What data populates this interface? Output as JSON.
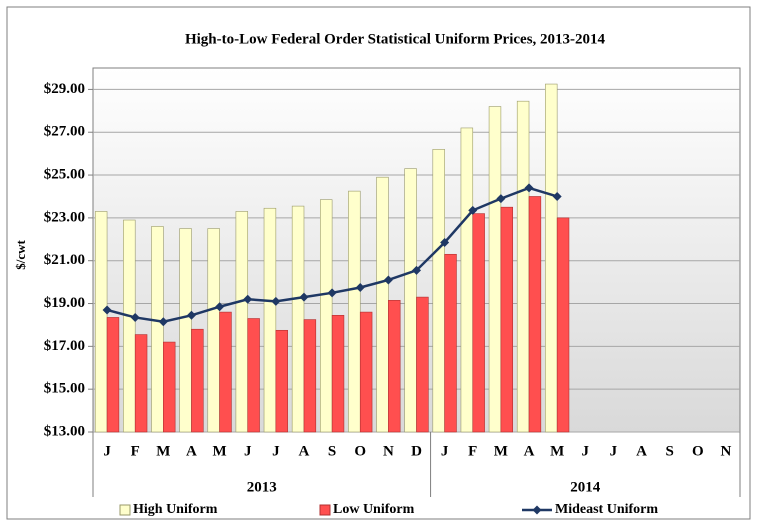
{
  "chart_data": {
    "type": "bar-line",
    "title": "High-to-Low Federal Order Statistical Uniform Prices, 2013-2014",
    "y_label": "$/cwt",
    "groups": [
      {
        "name": "2013",
        "categories": [
          "J",
          "F",
          "M",
          "A",
          "M",
          "J",
          "J",
          "A",
          "S",
          "O",
          "N",
          "D"
        ]
      },
      {
        "name": "2014",
        "categories": [
          "J",
          "F",
          "M",
          "A",
          "M",
          "J",
          "J",
          "A",
          "S",
          "O",
          "N"
        ]
      }
    ],
    "ylim": [
      13,
      30
    ],
    "yticks": [
      {
        "value": 13,
        "label": "$13.00"
      },
      {
        "value": 15,
        "label": "$15.00"
      },
      {
        "value": 17,
        "label": "$17.00"
      },
      {
        "value": 19,
        "label": "$19.00"
      },
      {
        "value": 21,
        "label": "$21.00"
      },
      {
        "value": 23,
        "label": "$23.00"
      },
      {
        "value": 25,
        "label": "$25.00"
      },
      {
        "value": 27,
        "label": "$27.00"
      },
      {
        "value": 29,
        "label": "$29.00"
      }
    ],
    "grid": true,
    "legend": "bottom",
    "series": [
      {
        "name": "High Uniform",
        "kind": "bar",
        "color": "#ffffcc",
        "values": [
          23.3,
          22.9,
          22.6,
          22.5,
          22.5,
          23.3,
          23.45,
          23.55,
          23.85,
          24.25,
          24.9,
          25.3,
          26.2,
          27.2,
          28.2,
          28.45,
          29.25,
          null,
          null,
          null,
          null,
          null,
          null
        ]
      },
      {
        "name": "Low Uniform",
        "kind": "bar",
        "color": "#ff4f4f",
        "values": [
          18.35,
          17.55,
          17.2,
          17.8,
          18.6,
          18.3,
          17.75,
          18.25,
          18.45,
          18.6,
          19.15,
          19.3,
          21.3,
          23.2,
          23.5,
          24.0,
          23.0,
          null,
          null,
          null,
          null,
          null,
          null
        ]
      },
      {
        "name": "Mideast Uniform",
        "kind": "line",
        "color": "#1f3864",
        "values": [
          18.7,
          18.35,
          18.15,
          18.45,
          18.85,
          19.2,
          19.1,
          19.3,
          19.5,
          19.75,
          20.1,
          20.55,
          21.85,
          23.35,
          23.9,
          24.4,
          24.0,
          null,
          null,
          null,
          null,
          null,
          null
        ]
      }
    ]
  }
}
